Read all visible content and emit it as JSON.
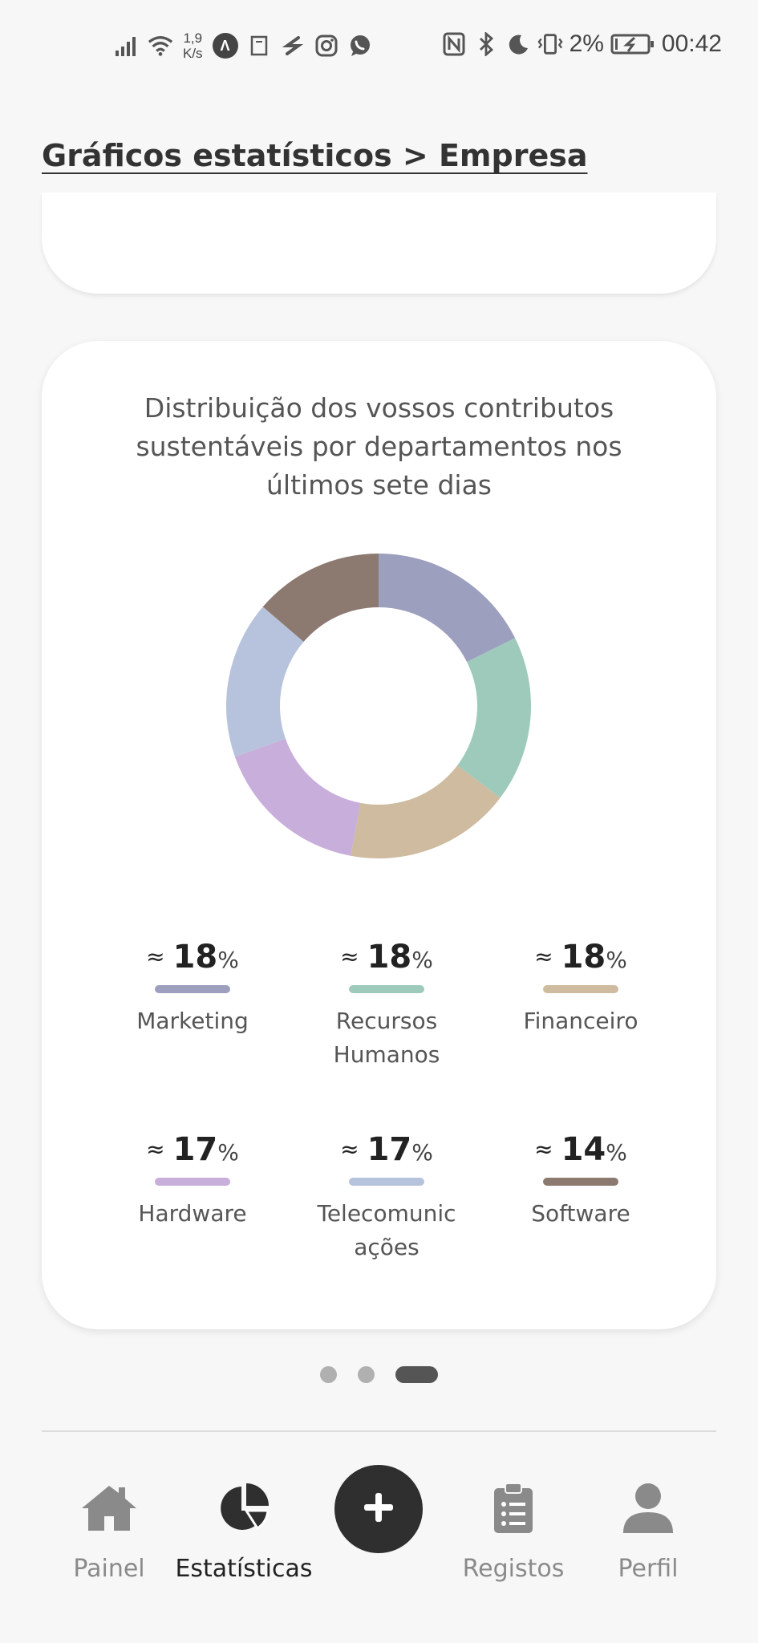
{
  "status_bar": {
    "speed_value": "1,9",
    "speed_unit": "K/s",
    "battery": "2%",
    "time": "00:42"
  },
  "header": {
    "breadcrumb": "Gráficos estatísticos > Empresa"
  },
  "card": {
    "title": "Distribuição dos vossos contributos sustentáveis por departamentos nos últimos sete dias"
  },
  "chart_data": {
    "type": "pie",
    "categories": [
      "Marketing",
      "Recursos Humanos",
      "Financeiro",
      "Hardware",
      "Telecomunicações",
      "Software"
    ],
    "values": [
      18,
      18,
      18,
      17,
      17,
      14
    ],
    "colors": [
      "#9c9fbd",
      "#9ecabc",
      "#cfbb9f",
      "#c8aedb",
      "#b7c3dd",
      "#8c7a71"
    ]
  },
  "legend": [
    {
      "approx": "≈",
      "value": "18",
      "unit": "%",
      "label": "Marketing",
      "color": "#9c9fbd"
    },
    {
      "approx": "≈",
      "value": "18",
      "unit": "%",
      "label": "Recursos Humanos",
      "color": "#9ecabc"
    },
    {
      "approx": "≈",
      "value": "18",
      "unit": "%",
      "label": "Financeiro",
      "color": "#cfbb9f"
    },
    {
      "approx": "≈",
      "value": "17",
      "unit": "%",
      "label": "Hardware",
      "color": "#c8aedb"
    },
    {
      "approx": "≈",
      "value": "17",
      "unit": "%",
      "label": "Telecomunicações",
      "color": "#b7c3dd"
    },
    {
      "approx": "≈",
      "value": "14",
      "unit": "%",
      "label": "Software",
      "color": "#8c7a71"
    }
  ],
  "pager": {
    "active_index": 2,
    "count": 3
  },
  "nav": {
    "items": [
      {
        "label": "Painel",
        "icon": "home-icon"
      },
      {
        "label": "Estatísticas",
        "icon": "pie-chart-icon"
      },
      {
        "label": "",
        "icon": "plus-icon"
      },
      {
        "label": "Registos",
        "icon": "clipboard-list-icon"
      },
      {
        "label": "Perfil",
        "icon": "user-icon"
      }
    ],
    "active": "Estatísticas"
  }
}
